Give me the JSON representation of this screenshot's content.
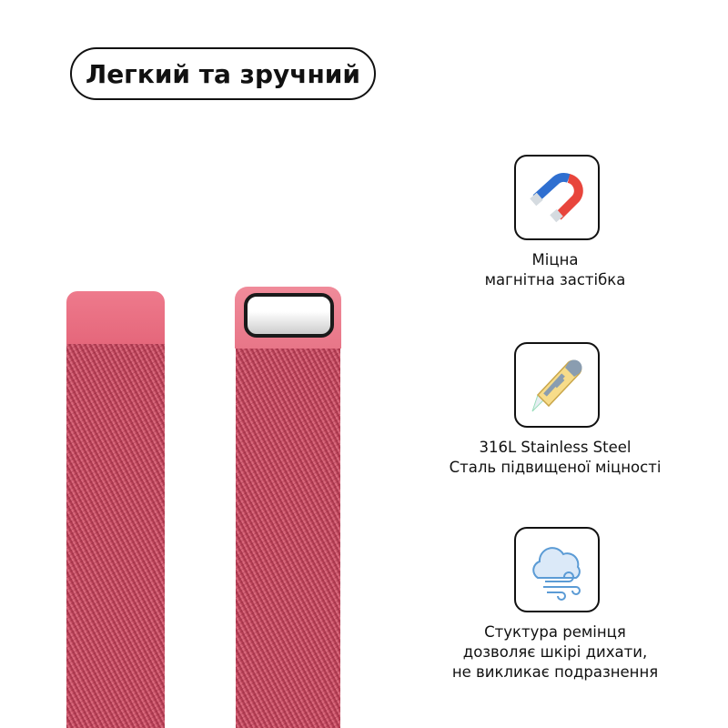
{
  "title": "Легкий та зручний",
  "colors": {
    "strap": "#c34d62",
    "cap": "#e86a7e",
    "magnet_blue": "#2f6fd0",
    "magnet_red": "#e8453c",
    "cloud": "#5b9bd5"
  },
  "features": [
    {
      "icon": "magnet-icon",
      "lines": [
        "Міцна",
        "магнітна застібка"
      ]
    },
    {
      "icon": "utility-knife-icon",
      "lines": [
        "316L Stainless Steel",
        "Сталь підвищеної міцності"
      ]
    },
    {
      "icon": "cloud-wind-icon",
      "lines": [
        "Стуктура ремінця",
        "дозволяє шкірі дихати,",
        "не викликає подразнення"
      ]
    }
  ]
}
